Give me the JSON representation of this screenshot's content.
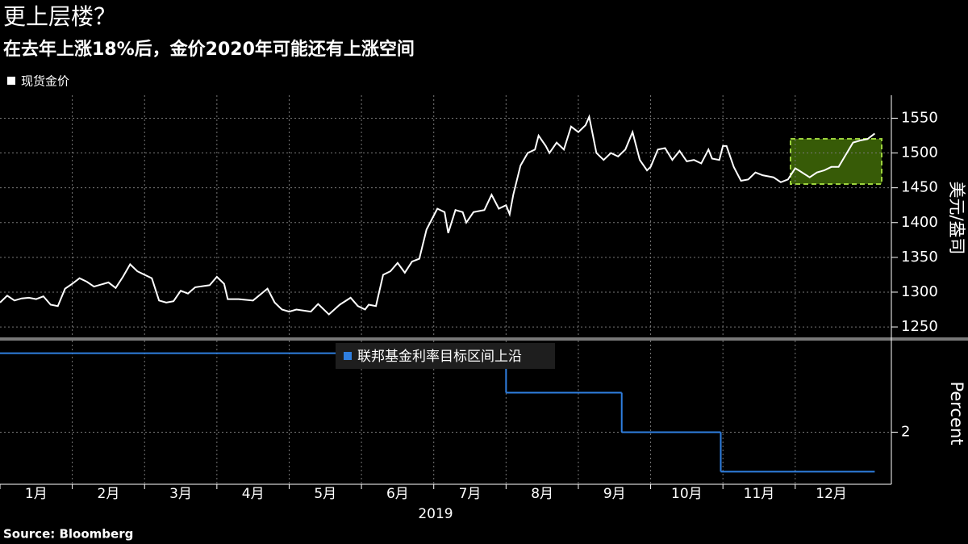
{
  "title": "更上层楼？",
  "subtitle": "在去年上涨18%后，金价2020年可能还有上涨空间",
  "source": "Source:  Bloomberg",
  "chart_data": [
    {
      "type": "line",
      "y_label": "美元/盎司",
      "ylim": [
        1235,
        1583
      ],
      "yticks": [
        1250,
        1300,
        1350,
        1400,
        1450,
        1500,
        1550
      ],
      "xlim": [
        1,
        13.33
      ],
      "grid": true,
      "series": [
        {
          "name": "现货金价",
          "color": "#ffffff",
          "x": [
            1.0,
            1.1,
            1.2,
            1.3,
            1.4,
            1.5,
            1.6,
            1.7,
            1.8,
            1.9,
            2.0,
            2.1,
            2.2,
            2.3,
            2.5,
            2.6,
            2.7,
            2.8,
            2.9,
            3.0,
            3.1,
            3.2,
            3.3,
            3.4,
            3.5,
            3.6,
            3.7,
            3.9,
            4.0,
            4.1,
            4.15,
            4.3,
            4.5,
            4.7,
            4.8,
            4.9,
            5.0,
            5.1,
            5.3,
            5.4,
            5.55,
            5.7,
            5.85,
            5.95,
            6.05,
            6.1,
            6.2,
            6.3,
            6.4,
            6.5,
            6.6,
            6.7,
            6.8,
            6.9,
            7.0,
            7.05,
            7.15,
            7.2,
            7.3,
            7.4,
            7.45,
            7.55,
            7.7,
            7.8,
            7.9,
            8.0,
            8.05,
            8.1,
            8.2,
            8.3,
            8.4,
            8.45,
            8.55,
            8.6,
            8.7,
            8.8,
            8.9,
            9.0,
            9.1,
            9.15,
            9.25,
            9.35,
            9.45,
            9.55,
            9.65,
            9.75,
            9.85,
            9.95,
            10.0,
            10.1,
            10.2,
            10.3,
            10.4,
            10.5,
            10.6,
            10.7,
            10.8,
            10.85,
            10.95,
            11.0,
            11.05,
            11.15,
            11.25,
            11.35,
            11.45,
            11.55,
            11.7,
            11.8,
            11.9,
            12.0,
            12.05,
            12.2,
            12.3,
            12.4,
            12.5,
            12.6,
            12.8,
            12.9,
            13.0,
            13.1
          ],
          "values": [
            1285,
            1295,
            1288,
            1291,
            1292,
            1290,
            1294,
            1282,
            1280,
            1305,
            1312,
            1320,
            1315,
            1308,
            1314,
            1306,
            1322,
            1340,
            1330,
            1325,
            1320,
            1288,
            1285,
            1287,
            1302,
            1298,
            1307,
            1310,
            1322,
            1312,
            1290,
            1290,
            1288,
            1305,
            1285,
            1275,
            1272,
            1275,
            1272,
            1283,
            1268,
            1282,
            1292,
            1280,
            1275,
            1282,
            1280,
            1325,
            1330,
            1342,
            1328,
            1344,
            1348,
            1390,
            1410,
            1420,
            1415,
            1385,
            1418,
            1415,
            1400,
            1415,
            1418,
            1440,
            1420,
            1425,
            1412,
            1440,
            1482,
            1500,
            1505,
            1525,
            1510,
            1500,
            1515,
            1505,
            1538,
            1530,
            1540,
            1552,
            1500,
            1490,
            1500,
            1495,
            1505,
            1530,
            1490,
            1475,
            1480,
            1505,
            1507,
            1490,
            1503,
            1488,
            1490,
            1485,
            1505,
            1492,
            1490,
            1510,
            1510,
            1480,
            1460,
            1462,
            1472,
            1468,
            1465,
            1458,
            1462,
            1478,
            1475,
            1465,
            1472,
            1475,
            1480,
            1480,
            1515,
            1518,
            1520,
            1528
          ]
        }
      ]
    },
    {
      "type": "step",
      "y_label": "Percent",
      "ylim": [
        1.67,
        2.58
      ],
      "yticks": [
        2
      ],
      "xlim": [
        1,
        13.33
      ],
      "grid": true,
      "x_label": "2019",
      "xticks": [
        {
          "value": 1,
          "label": "1月"
        },
        {
          "value": 2,
          "label": "2月"
        },
        {
          "value": 3,
          "label": "3月"
        },
        {
          "value": 4,
          "label": "4月"
        },
        {
          "value": 5,
          "label": "5月"
        },
        {
          "value": 6,
          "label": "6月"
        },
        {
          "value": 7,
          "label": "7月"
        },
        {
          "value": 8,
          "label": "8月"
        },
        {
          "value": 9,
          "label": "9月"
        },
        {
          "value": 10,
          "label": "10月"
        },
        {
          "value": 11,
          "label": "11月"
        },
        {
          "value": 12,
          "label": "12月"
        }
      ],
      "series": [
        {
          "name": "联邦基金利率目标区间上沿",
          "color": "#2f7fe0",
          "x": [
            1,
            8.0,
            9.6,
            10.97,
            13.1
          ],
          "values": [
            2.5,
            2.25,
            2.0,
            1.75,
            1.75
          ]
        }
      ]
    }
  ]
}
